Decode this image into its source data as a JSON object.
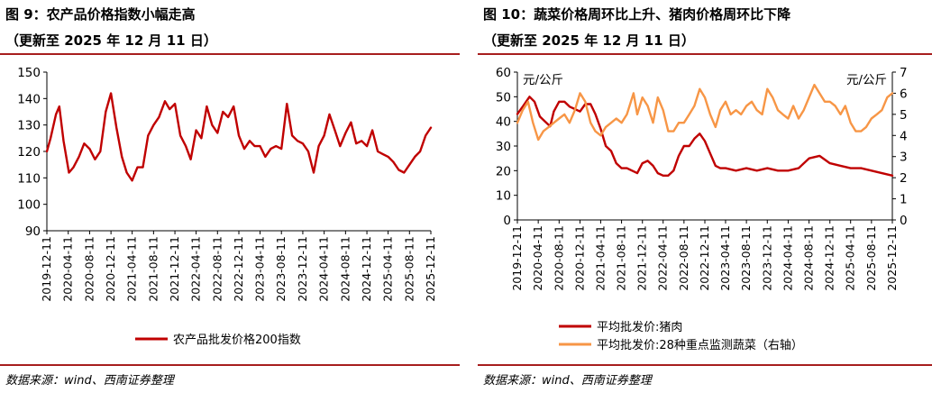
{
  "left": {
    "title": "图 9：农产品价格指数小幅走高",
    "subtitle": "（更新至 2025 年 12 月 11 日）",
    "source": "数据来源：wind、西南证券整理",
    "chart_data": {
      "type": "line",
      "title": "图 9：农产品价格指数小幅走高",
      "ylim": [
        90,
        150
      ],
      "yticks": [
        "150",
        "140",
        "130",
        "120",
        "110",
        "100",
        "90"
      ],
      "xticks": [
        "2019-12-11",
        "2020-04-11",
        "2020-08-11",
        "2020-12-11",
        "2021-04-11",
        "2021-08-11",
        "2021-12-11",
        "2022-04-11",
        "2022-08-11",
        "2022-12-11",
        "2023-04-11",
        "2023-08-11",
        "2023-12-11",
        "2024-04-11",
        "2024-08-11",
        "2024-12-11",
        "2025-04-11",
        "2025-08-11",
        "2025-12-11"
      ],
      "x_start": "2019-12-11",
      "grid": false,
      "legend_position": "bottom",
      "series": [
        {
          "name": "农产品批发价格200指数",
          "color": "#c00000",
          "x": [
            "2019-12-11",
            "2020-01-01",
            "2020-02-01",
            "2020-02-20",
            "2020-03-15",
            "2020-04-15",
            "2020-05-11",
            "2020-06-11",
            "2020-07-11",
            "2020-08-11",
            "2020-09-11",
            "2020-10-11",
            "2020-11-11",
            "2020-12-11",
            "2021-01-11",
            "2021-02-11",
            "2021-03-11",
            "2021-04-11",
            "2021-05-11",
            "2021-06-11",
            "2021-07-11",
            "2021-08-11",
            "2021-09-11",
            "2021-10-15",
            "2021-11-11",
            "2021-12-11",
            "2022-01-11",
            "2022-02-11",
            "2022-03-11",
            "2022-04-11",
            "2022-05-11",
            "2022-06-11",
            "2022-07-11",
            "2022-08-11",
            "2022-09-11",
            "2022-10-11",
            "2022-11-11",
            "2022-12-11",
            "2023-01-11",
            "2023-02-11",
            "2023-03-11",
            "2023-04-11",
            "2023-05-11",
            "2023-06-11",
            "2023-07-11",
            "2023-08-11",
            "2023-09-11",
            "2023-10-11",
            "2023-11-11",
            "2023-12-11",
            "2024-01-11",
            "2024-02-11",
            "2024-03-11",
            "2024-04-11",
            "2024-05-11",
            "2024-06-11",
            "2024-07-11",
            "2024-08-11",
            "2024-09-11",
            "2024-10-11",
            "2024-11-11",
            "2024-12-11",
            "2025-01-11",
            "2025-02-11",
            "2025-03-11",
            "2025-04-11",
            "2025-05-11",
            "2025-06-11",
            "2025-07-11",
            "2025-08-11",
            "2025-09-11",
            "2025-10-11",
            "2025-11-11",
            "2025-12-11"
          ],
          "values": [
            120,
            125,
            134,
            137,
            124,
            112,
            114,
            118,
            123,
            121,
            117,
            120,
            135,
            142,
            129,
            118,
            112,
            109,
            114,
            114,
            126,
            130,
            133,
            139,
            136,
            138,
            126,
            122,
            117,
            128,
            125,
            137,
            130,
            127,
            135,
            133,
            137,
            126,
            121,
            124,
            122,
            122,
            118,
            121,
            122,
            121,
            138,
            126,
            124,
            123,
            120,
            112,
            122,
            126,
            134,
            128,
            122,
            127,
            131,
            123,
            124,
            122,
            128,
            120,
            119,
            118,
            116,
            113,
            112,
            115,
            118,
            120,
            126,
            129
          ]
        }
      ]
    }
  },
  "right": {
    "title": "图 10：蔬菜价格周环比上升、猪肉价格周环比下降",
    "subtitle": "（更新至 2025 年 12 月 11 日）",
    "source": "数据来源：wind、西南证券整理",
    "chart_data": {
      "type": "line",
      "title": "图 10：蔬菜价格周环比上升、猪肉价格周环比下降",
      "ylabel": "元/公斤",
      "y2label": "元/公斤",
      "ylim": [
        0,
        60
      ],
      "y2lim": [
        0,
        7
      ],
      "yticks": [
        "60",
        "50",
        "40",
        "30",
        "20",
        "10",
        "0"
      ],
      "y2ticks": [
        "7",
        "6",
        "5",
        "4",
        "3",
        "2",
        "1",
        "0"
      ],
      "xticks": [
        "2019-12-11",
        "2020-04-11",
        "2020-08-11",
        "2020-12-11",
        "2021-04-11",
        "2021-08-11",
        "2021-12-11",
        "2022-04-11",
        "2022-08-11",
        "2022-12-11",
        "2023-04-11",
        "2023-08-11",
        "2023-12-11",
        "2024-04-11",
        "2024-08-11",
        "2024-12-11",
        "2025-04-11",
        "2025-08-11",
        "2025-12-11"
      ],
      "x_start": "2019-12-11",
      "grid": false,
      "legend_position": "bottom",
      "series": [
        {
          "name": "平均批发价:猪肉",
          "axis": "left",
          "color": "#c00000",
          "x": [
            "2019-12-11",
            "2020-01-11",
            "2020-02-20",
            "2020-03-20",
            "2020-04-20",
            "2020-05-20",
            "2020-06-20",
            "2020-07-11",
            "2020-08-11",
            "2020-09-11",
            "2020-10-11",
            "2020-11-11",
            "2020-12-11",
            "2021-01-11",
            "2021-02-11",
            "2021-03-11",
            "2021-04-11",
            "2021-05-11",
            "2021-06-11",
            "2021-07-11",
            "2021-08-11",
            "2021-09-11",
            "2021-10-11",
            "2021-11-11",
            "2021-12-11",
            "2022-01-11",
            "2022-02-11",
            "2022-03-11",
            "2022-04-11",
            "2022-05-11",
            "2022-06-11",
            "2022-07-11",
            "2022-08-11",
            "2022-09-11",
            "2022-10-11",
            "2022-11-11",
            "2022-12-11",
            "2023-01-11",
            "2023-02-11",
            "2023-03-11",
            "2023-04-11",
            "2023-06-11",
            "2023-08-11",
            "2023-10-11",
            "2023-12-11",
            "2024-02-11",
            "2024-04-11",
            "2024-06-11",
            "2024-08-11",
            "2024-10-11",
            "2024-12-11",
            "2025-02-11",
            "2025-04-11",
            "2025-06-11",
            "2025-08-11",
            "2025-10-11",
            "2025-12-11"
          ],
          "values": [
            43,
            46,
            50,
            48,
            42,
            40,
            38,
            44,
            48,
            48,
            46,
            45,
            44,
            47,
            47,
            43,
            37,
            30,
            28,
            23,
            21,
            21,
            20,
            19,
            23,
            24,
            22,
            19,
            18,
            18,
            20,
            26,
            30,
            30,
            33,
            35,
            32,
            27,
            22,
            21,
            21,
            20,
            21,
            20,
            21,
            20,
            20,
            21,
            25,
            26,
            23,
            22,
            21,
            21,
            20,
            19,
            18
          ]
        },
        {
          "name": "平均批发价:28种重点监测蔬菜（右轴）",
          "axis": "right",
          "color": "#f79646",
          "x": [
            "2019-12-11",
            "2020-01-11",
            "2020-02-11",
            "2020-03-11",
            "2020-04-11",
            "2020-05-11",
            "2020-06-11",
            "2020-07-11",
            "2020-08-11",
            "2020-09-11",
            "2020-10-11",
            "2020-11-11",
            "2020-12-11",
            "2021-01-11",
            "2021-02-11",
            "2021-03-11",
            "2021-04-11",
            "2021-05-11",
            "2021-06-11",
            "2021-07-11",
            "2021-08-11",
            "2021-09-11",
            "2021-10-20",
            "2021-11-11",
            "2021-12-11",
            "2022-01-11",
            "2022-02-11",
            "2022-03-11",
            "2022-04-11",
            "2022-05-11",
            "2022-06-11",
            "2022-07-11",
            "2022-08-11",
            "2022-09-11",
            "2022-10-11",
            "2022-11-11",
            "2022-12-11",
            "2023-01-11",
            "2023-02-11",
            "2023-03-11",
            "2023-04-11",
            "2023-05-11",
            "2023-06-11",
            "2023-07-11",
            "2023-08-11",
            "2023-09-11",
            "2023-10-11",
            "2023-11-11",
            "2023-12-11",
            "2024-01-11",
            "2024-02-11",
            "2024-03-11",
            "2024-04-11",
            "2024-05-11",
            "2024-06-11",
            "2024-07-11",
            "2024-08-11",
            "2024-09-11",
            "2024-10-11",
            "2024-11-11",
            "2024-12-11",
            "2025-01-11",
            "2025-02-11",
            "2025-03-11",
            "2025-04-11",
            "2025-05-11",
            "2025-06-11",
            "2025-07-11",
            "2025-08-11",
            "2025-09-11",
            "2025-10-11",
            "2025-11-11",
            "2025-12-11"
          ],
          "values": [
            4.6,
            5.2,
            5.6,
            4.6,
            3.8,
            4.2,
            4.4,
            4.6,
            4.8,
            5.0,
            4.6,
            5.2,
            6.0,
            5.6,
            4.6,
            4.2,
            4.0,
            4.4,
            4.6,
            4.8,
            4.6,
            5.0,
            6.0,
            5.0,
            5.8,
            5.4,
            4.6,
            5.8,
            5.2,
            4.2,
            4.2,
            4.6,
            4.6,
            5.0,
            5.4,
            6.2,
            5.8,
            5.0,
            4.4,
            5.2,
            5.6,
            5.0,
            5.2,
            5.0,
            5.4,
            5.6,
            5.2,
            5.0,
            6.2,
            5.8,
            5.2,
            5.0,
            4.8,
            5.4,
            4.8,
            5.2,
            5.8,
            6.4,
            6.0,
            5.6,
            5.6,
            5.4,
            5.0,
            5.4,
            4.6,
            4.2,
            4.2,
            4.4,
            4.8,
            5.0,
            5.2,
            5.8,
            6.0
          ]
        }
      ]
    }
  }
}
